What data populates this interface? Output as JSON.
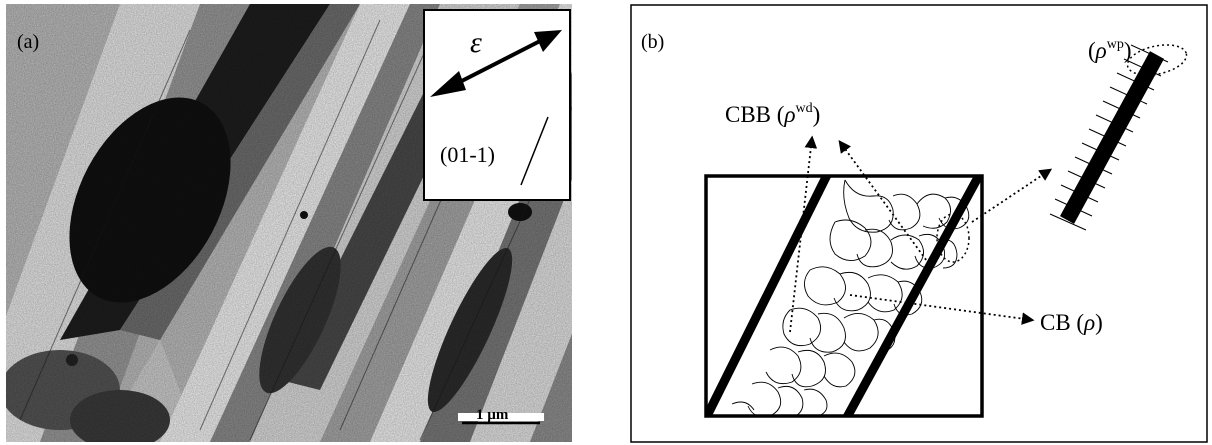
{
  "panel_a": {
    "label": "(a)",
    "inset": {
      "strain_symbol": "ε",
      "plane": "(01-1)"
    },
    "scale_bar": "1 µm"
  },
  "panel_b": {
    "label": "(b)",
    "cbb_label": "CBB (",
    "cbb_rho": "ρ",
    "cbb_sup": "wd",
    "cb_label": "CB (",
    "cb_rho": "ρ",
    "rho_wp_prefix": "(",
    "rho_wp_rho": "ρ",
    "rho_wp_sup": "wp",
    "close_paren": ")"
  }
}
